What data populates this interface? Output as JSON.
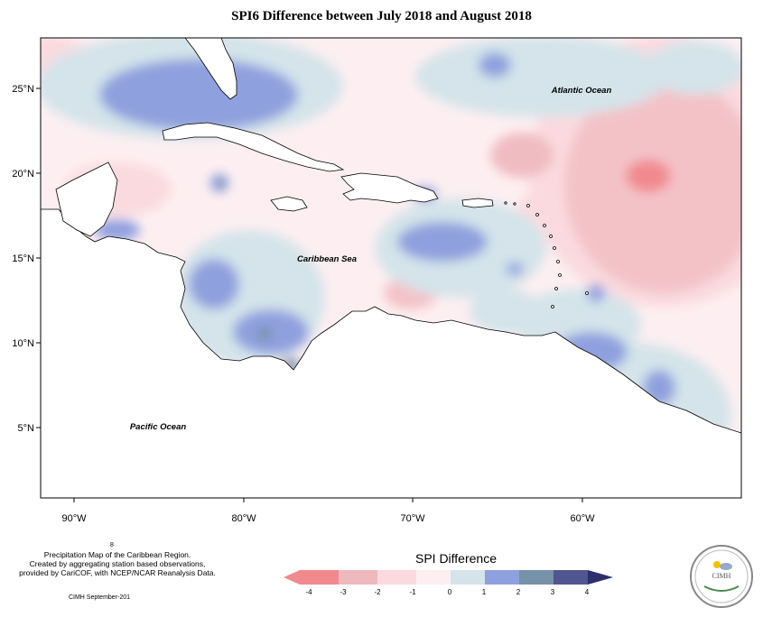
{
  "title": "SPI6 Difference between July 2018 and August 2018",
  "map": {
    "lat_ticks": [
      "25°N",
      "20°N",
      "15°N",
      "10°N",
      "5°N"
    ],
    "lon_ticks": [
      "90°W",
      "80°W",
      "70°W",
      "60°W"
    ],
    "labels": {
      "atlantic": "Atlantic Ocean",
      "caribbean": "Caribbean Sea",
      "pacific": "Pacific Ocean"
    }
  },
  "credits": {
    "line0": "8",
    "line1": "Precipitation Map of the Caribbean Region.",
    "line2": "Created by aggregating station based observations,",
    "line3": "provided by CariCOF, with NCEP/NCAR Reanalysis Data.",
    "footer": "CIMH September-201"
  },
  "legend": {
    "title": "SPI Difference",
    "ticks": [
      "-4",
      "-3",
      "-2",
      "-1",
      "0",
      "1",
      "2",
      "3",
      "4"
    ],
    "colors": [
      "#f08a8f",
      "#edb9bd",
      "#fadadf",
      "#fdeff1",
      "#d4e4ea",
      "#8fa0de",
      "#7791a8",
      "#4f5690"
    ]
  },
  "logo": {
    "text": "CIMH"
  }
}
